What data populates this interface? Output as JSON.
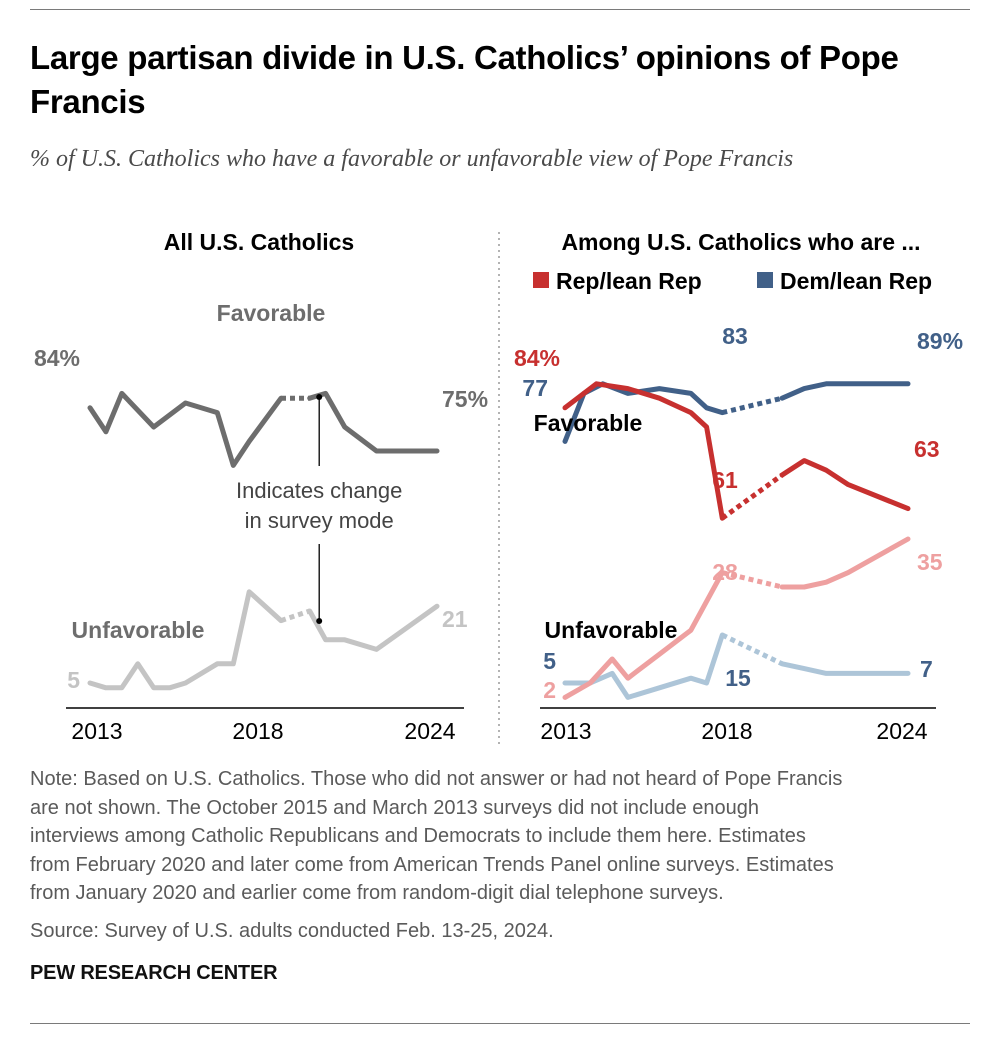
{
  "header": {
    "title": "Large partisan divide in U.S. Catholics’ opinions of Pope Francis",
    "subtitle": "% of U.S. Catholics who have a favorable or unfavorable view of Pope Francis"
  },
  "note": {
    "lines": [
      "Note: Based on U.S. Catholics. Those who did not answer or had not heard of Pope Francis",
      "are not shown. The October 2015 and March 2013 surveys did not include enough",
      "interviews among Catholic Republicans and Democrats to include them here. Estimates",
      "from February 2020 and later come from American Trends Panel online surveys. Estimates",
      "from January 2020 and earlier come from random-digit dial telephone surveys."
    ],
    "source": "Source: Survey of U.S. adults conducted Feb. 13-25, 2024."
  },
  "brand": "PEW RESEARCH CENTER",
  "colors": {
    "all_favorable": "#6d6d6d",
    "all_unfavorable": "#c4c4c4",
    "rep_favorable": "#c7302f",
    "rep_unfavorable": "#eea0a0",
    "dem_favorable": "#416088",
    "dem_unfavorable": "#adc5d8",
    "axis": "#000000",
    "divider": "#9a9a9a"
  },
  "chart_data": [
    {
      "type": "line",
      "title": "All U.S. Catholics",
      "xlim": [
        2013,
        2024
      ],
      "ylim": [
        0,
        100
      ],
      "x_ticks": [
        "2013",
        "2018",
        "2024"
      ],
      "mode_change_year": 2020,
      "series": [
        {
          "name": "Favorable",
          "x": [
            2013.2,
            2013.7,
            2014.2,
            2015.2,
            2016.2,
            2017.2,
            2017.7,
            2018.2,
            2019.2,
            2020.1,
            2020.6,
            2021.2,
            2022.2,
            2024.1
          ],
          "values": [
            84,
            79,
            87,
            80,
            85,
            83,
            72,
            77,
            86,
            86,
            87,
            80,
            75,
            75
          ],
          "start_label": "84%",
          "end_label": "75%"
        },
        {
          "name": "Unfavorable",
          "x": [
            2013.2,
            2013.7,
            2014.2,
            2014.7,
            2015.2,
            2015.7,
            2016.2,
            2017.2,
            2017.7,
            2018.2,
            2019.2,
            2020.1,
            2020.6,
            2021.2,
            2022.2,
            2024.1
          ],
          "values": [
            5,
            4,
            4,
            9,
            4,
            4,
            5,
            9,
            9,
            24,
            18,
            20,
            14,
            14,
            12,
            21
          ],
          "start_label": "5",
          "end_label": "21"
        }
      ],
      "annotation": "Indicates change in survey mode"
    },
    {
      "type": "line",
      "title": "Among U.S. Catholics who are ...",
      "xlim": [
        2013,
        2024
      ],
      "ylim": [
        0,
        100
      ],
      "x_ticks": [
        "2013",
        "2018",
        "2024"
      ],
      "mode_change_year": 2020,
      "legend": [
        "Rep/lean Rep",
        "Dem/lean Rep"
      ],
      "series": [
        {
          "name": "Rep/lean Rep",
          "measure": "Favorable",
          "x": [
            2013.2,
            2014.2,
            2015.2,
            2016.2,
            2017.2,
            2017.7,
            2018.2,
            2020.1,
            2020.8,
            2021.5,
            2022.2,
            2024.1
          ],
          "values": [
            84,
            89,
            88,
            86,
            83,
            80,
            61,
            70,
            73,
            71,
            68,
            63
          ],
          "labels": {
            "start": "84%",
            "min": "61",
            "end": "63"
          }
        },
        {
          "name": "Dem/lean Rep",
          "measure": "Favorable",
          "x": [
            2013.2,
            2013.8,
            2014.4,
            2015.2,
            2016.2,
            2017.2,
            2017.7,
            2018.2,
            2020.1,
            2020.8,
            2021.5,
            2022.2,
            2024.1
          ],
          "values": [
            77,
            87,
            89,
            87,
            88,
            87,
            84,
            83,
            86,
            88,
            89,
            89,
            89
          ],
          "labels": {
            "start": "77",
            "point": "83",
            "end": "89%"
          }
        },
        {
          "name": "Rep/lean Rep",
          "measure": "Unfavorable",
          "x": [
            2013.2,
            2014.0,
            2014.7,
            2015.2,
            2016.2,
            2017.2,
            2018.2,
            2020.1,
            2020.8,
            2021.5,
            2022.2,
            2024.1
          ],
          "values": [
            2,
            5,
            10,
            6,
            11,
            16,
            28,
            25,
            25,
            26,
            28,
            35
          ],
          "labels": {
            "start": "2",
            "point": "28",
            "end": "35"
          }
        },
        {
          "name": "Dem/lean Rep",
          "measure": "Unfavorable",
          "x": [
            2013.2,
            2014.0,
            2014.7,
            2015.2,
            2016.2,
            2017.2,
            2017.7,
            2018.2,
            2020.1,
            2020.8,
            2021.5,
            2022.2,
            2024.1
          ],
          "values": [
            5,
            5,
            7,
            2,
            4,
            6,
            5,
            15,
            9,
            8,
            7,
            7,
            7
          ],
          "labels": {
            "start": "5",
            "point": "15",
            "end": "7"
          }
        }
      ],
      "series_labels": [
        "Favorable",
        "Unfavorable"
      ]
    }
  ]
}
